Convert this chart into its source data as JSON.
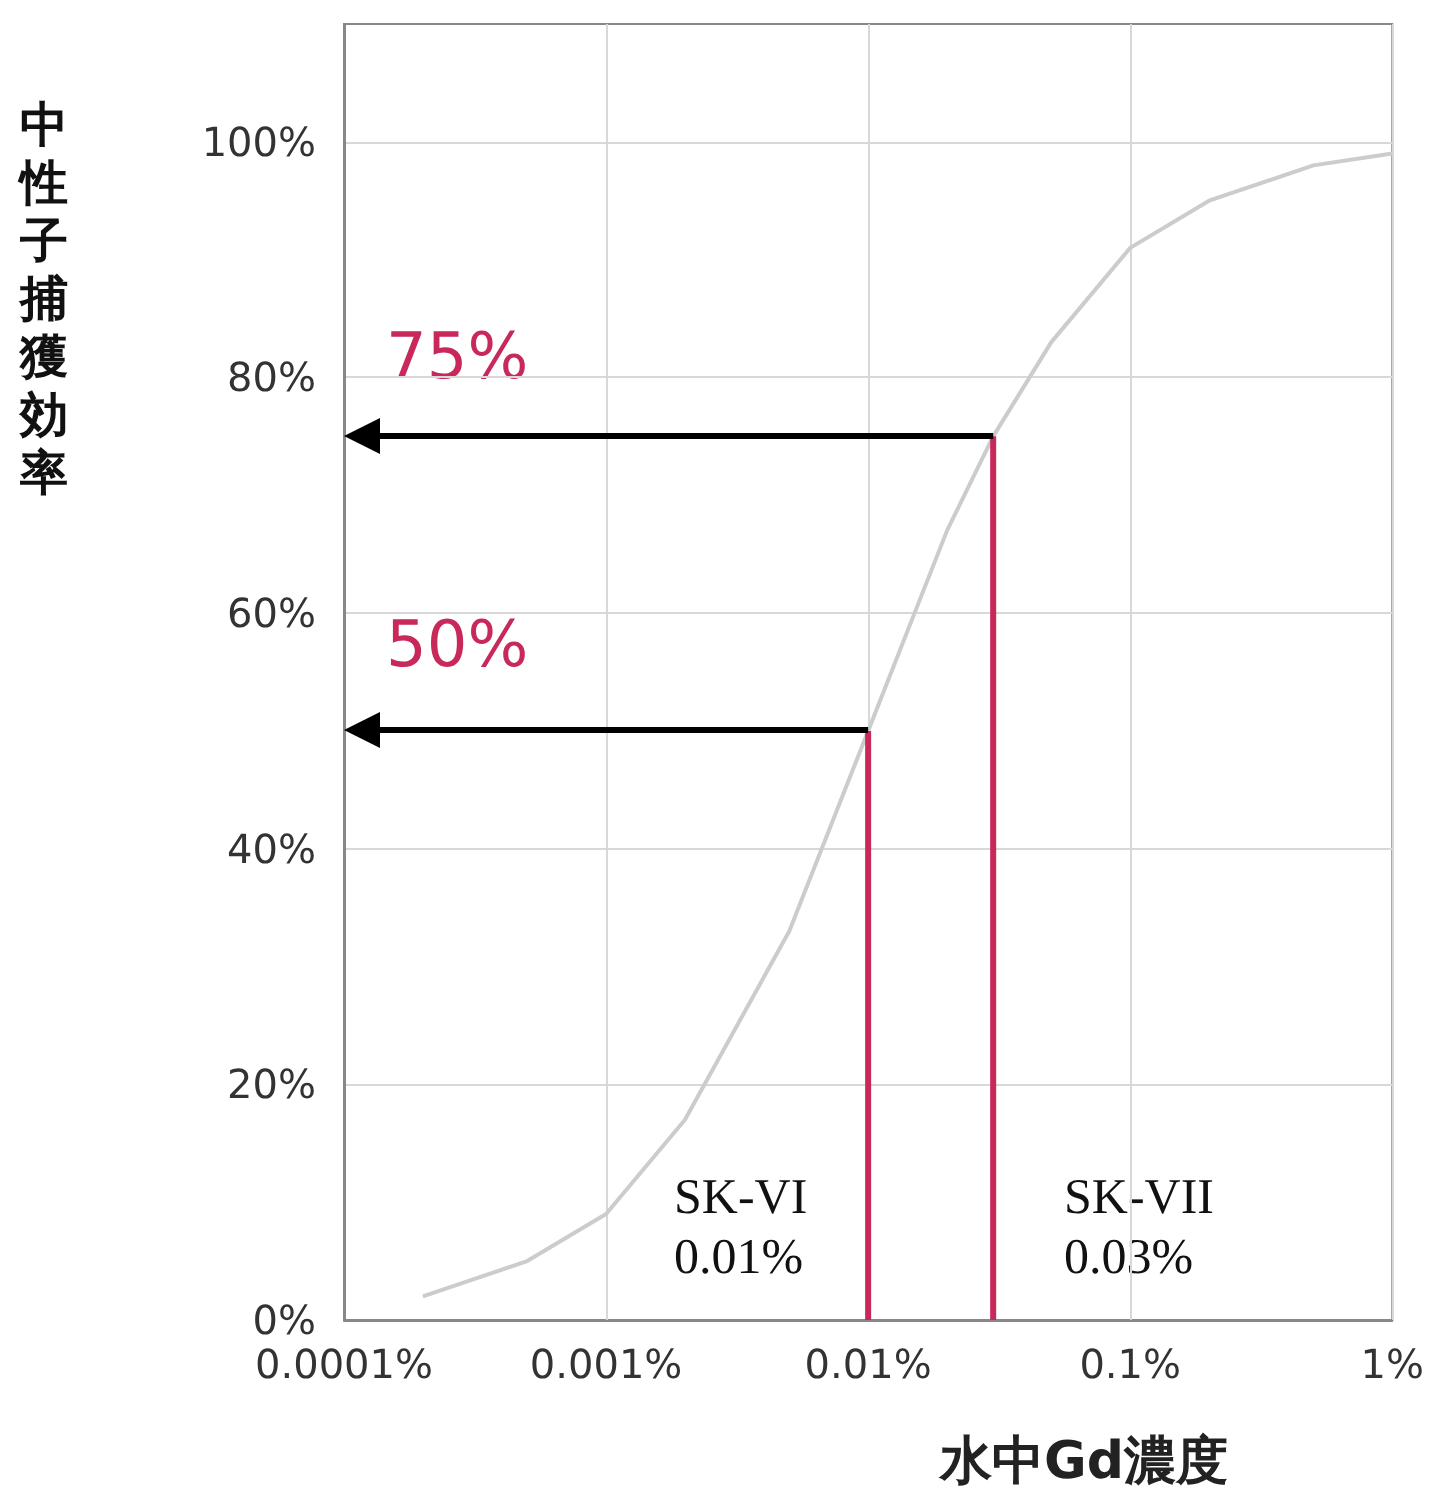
{
  "chart_data": {
    "type": "line",
    "xlabel": "水中Gd濃度",
    "ylabel": "中性子捕獲効率",
    "log": "x",
    "grid": true,
    "marker": "none",
    "xlim": [
      0.0001,
      1
    ],
    "xticks": [
      {
        "value": 0.0001,
        "label": "0.0001%"
      },
      {
        "value": 0.001,
        "label": "0.001%"
      },
      {
        "value": 0.01,
        "label": "0.01%"
      },
      {
        "value": 0.1,
        "label": "0.1%"
      },
      {
        "value": 1,
        "label": "1%"
      }
    ],
    "ylim": [
      0,
      110
    ],
    "yticks": [
      {
        "value": 0,
        "label": "0%"
      },
      {
        "value": 20,
        "label": "20%"
      },
      {
        "value": 40,
        "label": "40%"
      },
      {
        "value": 60,
        "label": "60%"
      },
      {
        "value": 80,
        "label": "80%"
      },
      {
        "value": 100,
        "label": "100%"
      }
    ],
    "series": [
      {
        "color": "#cccccc",
        "x": [
          0.0002,
          0.0005,
          0.001,
          0.002,
          0.005,
          0.01,
          0.02,
          0.03,
          0.05,
          0.1,
          0.2,
          0.5,
          1
        ],
        "values": [
          2,
          5,
          9,
          17,
          33,
          50,
          67,
          75,
          83,
          91,
          95,
          98,
          99
        ]
      },
      {
        "color": "#c8285a",
        "x": [
          0.01,
          0.01
        ],
        "values": [
          0,
          50
        ]
      },
      {
        "color": "#c8285a",
        "x": [
          0.03,
          0.03
        ],
        "values": [
          0,
          75
        ]
      }
    ],
    "annotations": [
      "75%",
      "50%",
      "SK-VI\n0.01%",
      "SK-VII\n0.03%"
    ]
  }
}
